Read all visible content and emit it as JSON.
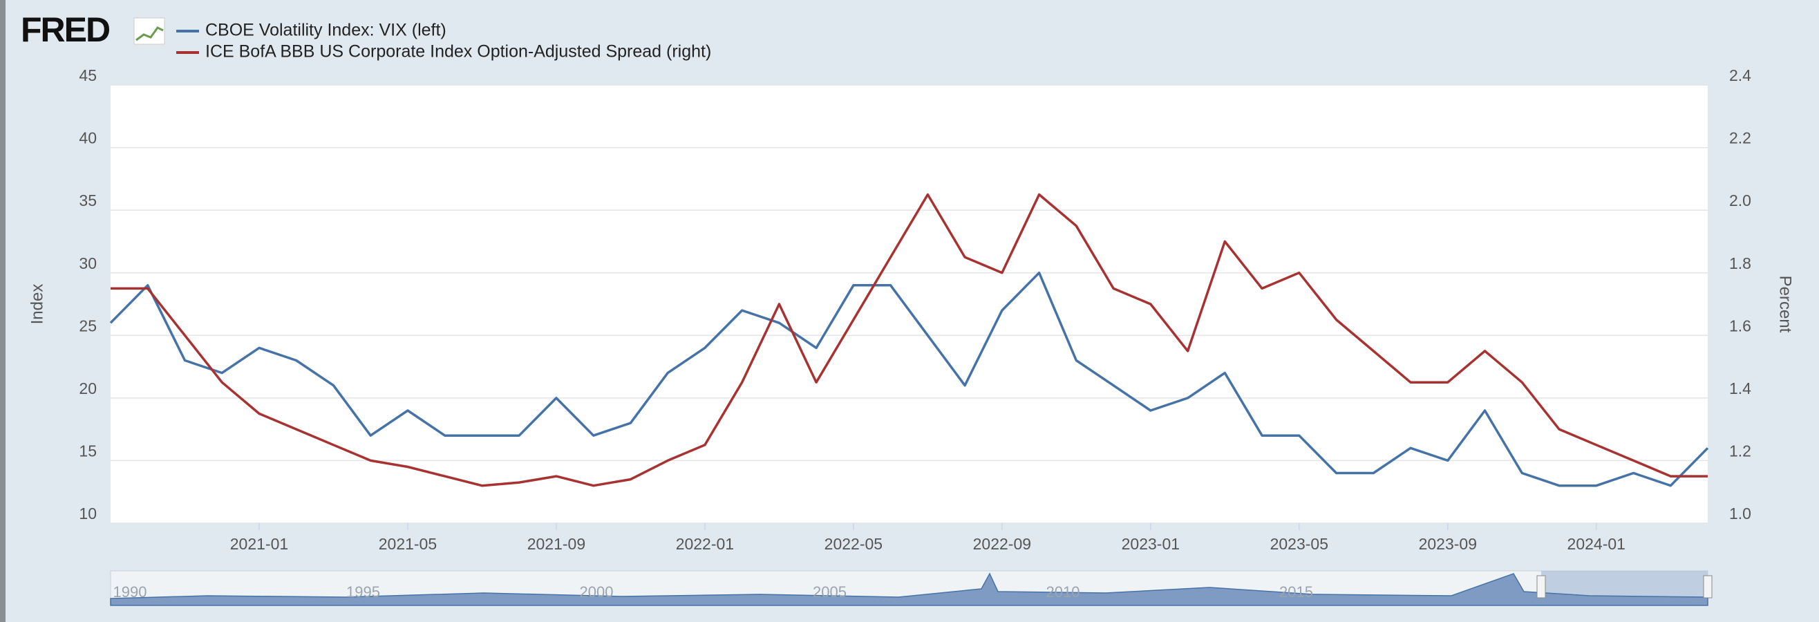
{
  "logo": "FRED",
  "navigator": {
    "labels": [
      "1990",
      "1995",
      "2000",
      "2005",
      "2010",
      "2015"
    ]
  },
  "chart_data": {
    "type": "line",
    "y_label": "Index",
    "y2_label": "Percent",
    "x": [
      "2020-09",
      "2020-10",
      "2020-11",
      "2020-12",
      "2021-01",
      "2021-02",
      "2021-03",
      "2021-04",
      "2021-05",
      "2021-06",
      "2021-07",
      "2021-08",
      "2021-09",
      "2021-10",
      "2021-11",
      "2021-12",
      "2022-01",
      "2022-02",
      "2022-03",
      "2022-04",
      "2022-05",
      "2022-06",
      "2022-07",
      "2022-08",
      "2022-09",
      "2022-10",
      "2022-11",
      "2022-12",
      "2023-01",
      "2023-02",
      "2023-03",
      "2023-04",
      "2023-05",
      "2023-06",
      "2023-07",
      "2023-08",
      "2023-09",
      "2023-10",
      "2023-11",
      "2023-12",
      "2024-01",
      "2024-02",
      "2024-03",
      "2024-04"
    ],
    "xlim": [
      "2020-09",
      "2024-04"
    ],
    "xticks": [
      "2021-01",
      "2021-05",
      "2021-09",
      "2022-01",
      "2022-05",
      "2022-09",
      "2023-01",
      "2023-05",
      "2023-09",
      "2024-01"
    ],
    "ylim": [
      10,
      45
    ],
    "yticks": [
      10,
      15,
      20,
      25,
      30,
      35,
      40,
      45
    ],
    "y2lim": [
      1.0,
      2.4
    ],
    "y2ticks": [
      {
        "value": 1.0,
        "label": "1.0"
      },
      1.2,
      1.4,
      1.6,
      1.8,
      {
        "value": 2.0,
        "label": "2.0"
      },
      2.2,
      2.4
    ],
    "grid": true,
    "series": [
      {
        "name": "CBOE Volatility Index: VIX (left)",
        "color": "#4572a7",
        "values": [
          26,
          29,
          23,
          22,
          24,
          23,
          21,
          17,
          19,
          17,
          17,
          17,
          20,
          17,
          18,
          22,
          24,
          27,
          26,
          24,
          29,
          29,
          25,
          21,
          27,
          30,
          23,
          21,
          19,
          20,
          22,
          17,
          17,
          14,
          14,
          16,
          15,
          19,
          14,
          13,
          13,
          14,
          13,
          16
        ]
      },
      {
        "name": "ICE BofA BBB US Corporate Index Option-Adjusted Spread (right)",
        "color": "#a83232",
        "axis": "y2",
        "values": [
          1.75,
          1.75,
          1.6,
          1.45,
          1.35,
          1.3,
          1.25,
          1.2,
          1.18,
          1.15,
          1.12,
          1.13,
          1.15,
          1.12,
          1.14,
          1.2,
          1.25,
          1.45,
          1.7,
          1.45,
          1.65,
          1.85,
          2.05,
          1.85,
          1.8,
          2.05,
          1.95,
          1.75,
          1.7,
          1.55,
          1.9,
          1.75,
          1.8,
          1.65,
          1.55,
          1.45,
          1.45,
          1.55,
          1.45,
          1.3,
          1.25,
          1.2,
          1.15,
          1.15
        ]
      }
    ]
  }
}
